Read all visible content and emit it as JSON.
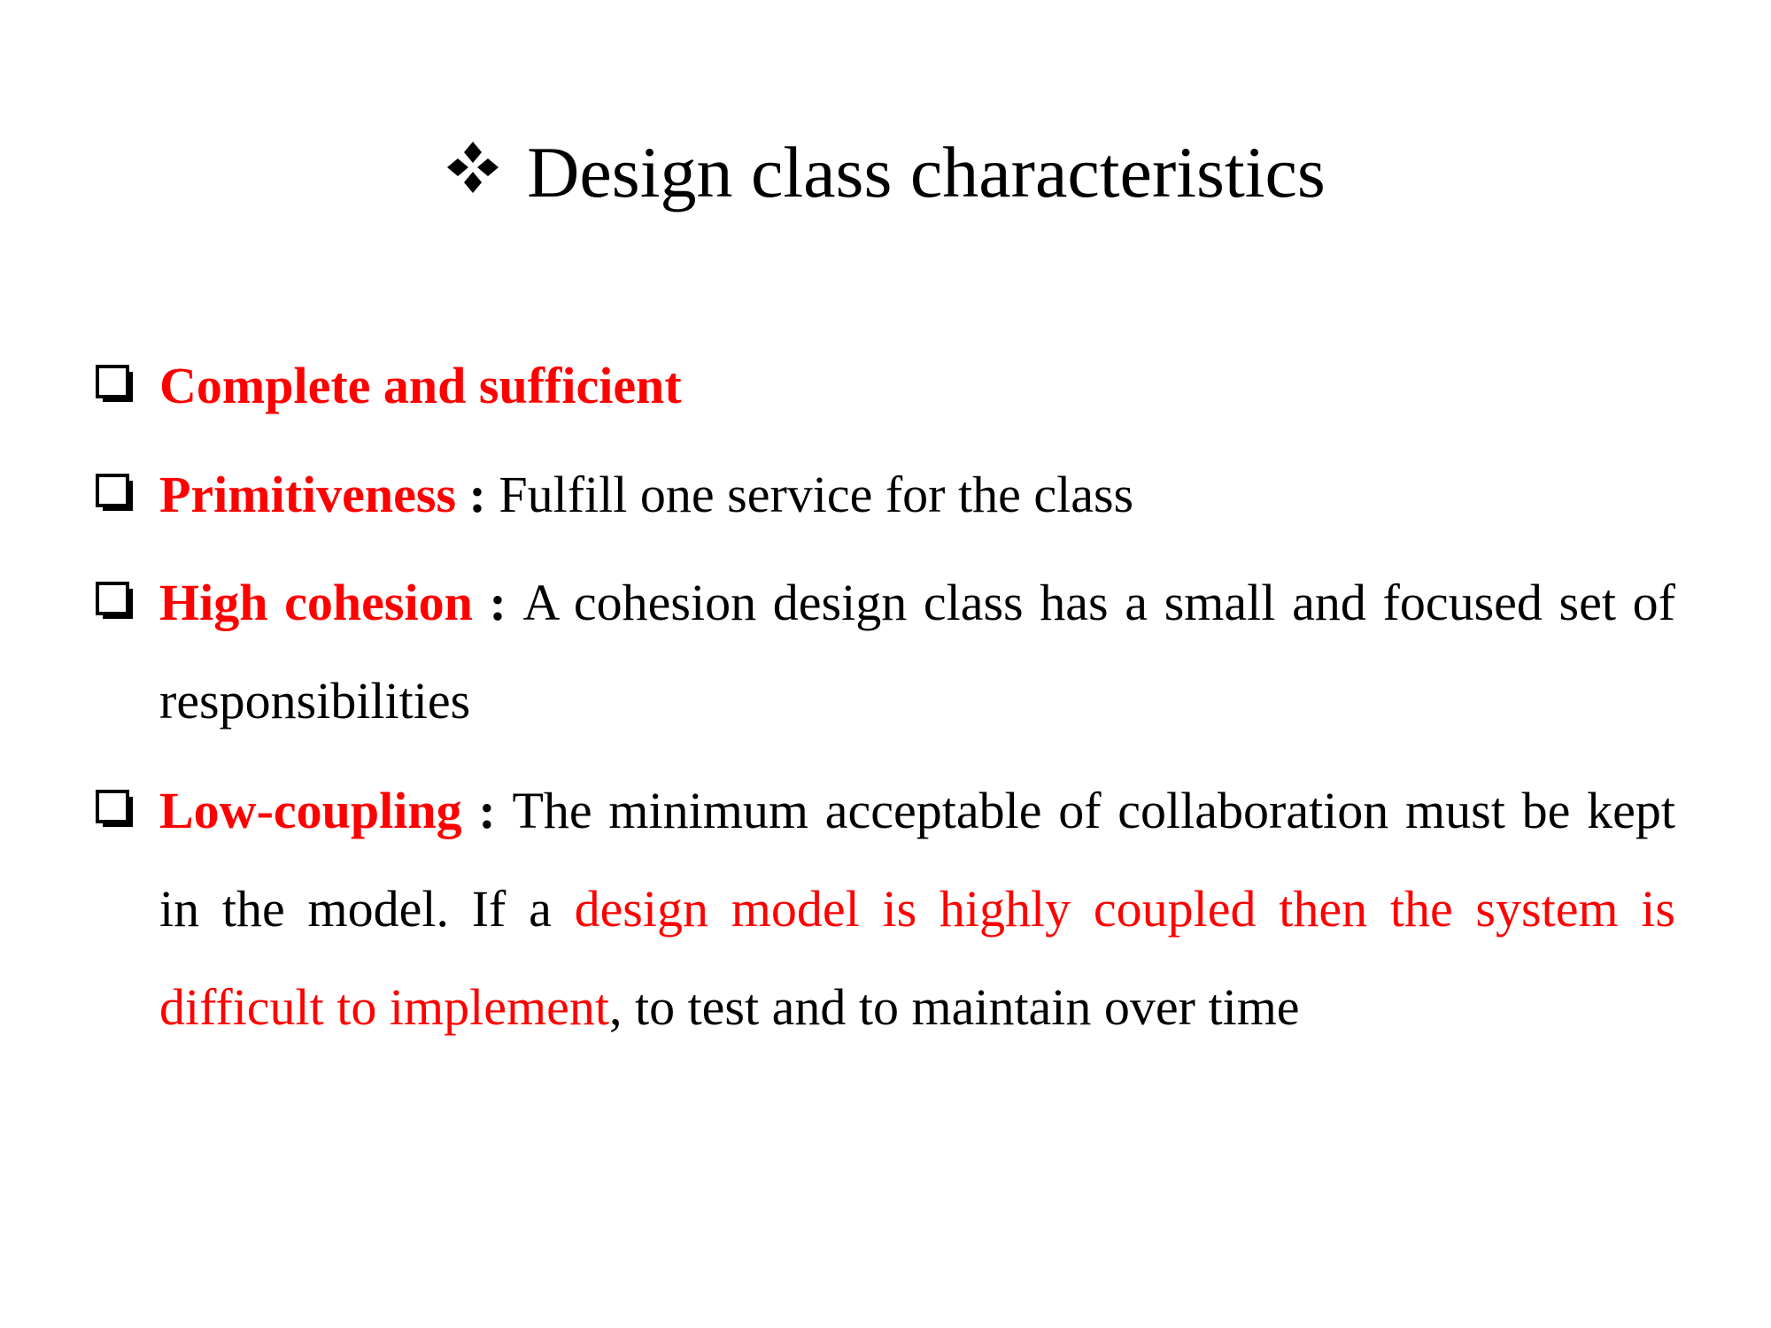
{
  "slide": {
    "title": "Design class characteristics",
    "title_bullet_icon": "four-diamond-bullet",
    "bullet_icon": "hollow-square-bullet",
    "accent_color": "#ff0000",
    "text_color": "#000000",
    "items": [
      {
        "term": "Complete and sufficient"
      },
      {
        "term": "Primitiveness",
        "separator": " : ",
        "description": "Fulfill one service for the class"
      },
      {
        "term": "High cohesion",
        "separator": " : ",
        "description": "A cohesion design class has a small and focused set of responsibilities"
      },
      {
        "term": "Low-coupling",
        "separator": " : ",
        "description_part1": "The minimum acceptable of collaboration must be kept in the model. If a ",
        "description_highlight": "design model is highly coupled then the system is difficult to implement",
        "description_part2": ", to test and to maintain over time"
      }
    ]
  }
}
